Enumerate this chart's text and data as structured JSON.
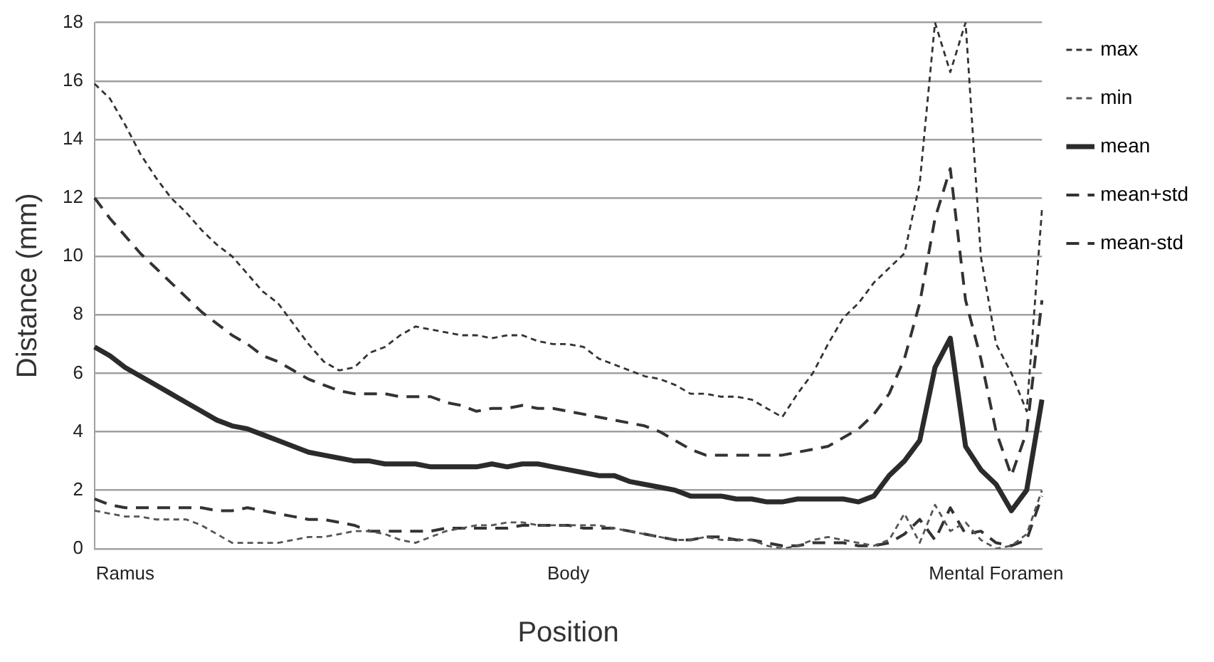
{
  "chart_data": {
    "type": "line",
    "xlabel": "Position",
    "ylabel": "Distance (mm)",
    "categories": [
      null,
      null,
      "Ramus",
      null,
      null,
      null,
      null,
      null,
      null,
      null,
      null,
      null,
      null,
      null,
      null,
      null,
      null,
      null,
      null,
      null,
      null,
      null,
      null,
      null,
      null,
      null,
      null,
      null,
      null,
      null,
      null,
      "Body",
      null,
      null,
      null,
      null,
      null,
      null,
      null,
      null,
      null,
      null,
      null,
      null,
      null,
      null,
      null,
      null,
      null,
      null,
      null,
      null,
      null,
      null,
      null,
      null,
      null,
      null,
      null,
      "Mental Foramen",
      null,
      null,
      null
    ],
    "series": [
      {
        "name": "max",
        "color": "#333333",
        "line_style": "dotted",
        "values": [
          15.9,
          15.4,
          14.5,
          13.5,
          12.7,
          12.0,
          11.5,
          10.9,
          10.4,
          10.0,
          9.4,
          8.8,
          8.4,
          7.7,
          7.0,
          6.4,
          6.1,
          6.2,
          6.7,
          6.9,
          7.3,
          7.6,
          7.5,
          7.4,
          7.3,
          7.3,
          7.2,
          7.3,
          7.3,
          7.1,
          7.0,
          7.0,
          6.9,
          6.5,
          6.3,
          6.1,
          5.9,
          5.8,
          5.6,
          5.3,
          5.3,
          5.2,
          5.2,
          5.1,
          4.8,
          4.5,
          5.3,
          6.0,
          7.0,
          7.9,
          8.4,
          9.1,
          9.6,
          10.1,
          12.5,
          18.0,
          16.3,
          18.0,
          10.0,
          7.0,
          6.0,
          4.7,
          11.6
        ]
      },
      {
        "name": "min",
        "color": "#555555",
        "line_style": "dotted",
        "values": [
          1.3,
          1.2,
          1.1,
          1.1,
          1.0,
          1.0,
          1.0,
          0.8,
          0.5,
          0.2,
          0.2,
          0.2,
          0.2,
          0.3,
          0.4,
          0.4,
          0.5,
          0.6,
          0.6,
          0.5,
          0.3,
          0.2,
          0.4,
          0.6,
          0.7,
          0.8,
          0.8,
          0.9,
          0.9,
          0.8,
          0.8,
          0.8,
          0.8,
          0.8,
          0.7,
          0.6,
          0.5,
          0.4,
          0.3,
          0.3,
          0.4,
          0.3,
          0.3,
          0.3,
          0.1,
          0.0,
          0.1,
          0.3,
          0.4,
          0.3,
          0.2,
          0.1,
          0.3,
          1.2,
          0.2,
          1.5,
          0.6,
          0.9,
          0.3,
          0.0,
          0.1,
          0.5,
          2.0
        ]
      },
      {
        "name": "mean",
        "color": "#2b2b2b",
        "line_style": "solid",
        "values": [
          6.9,
          6.6,
          6.2,
          5.9,
          5.6,
          5.3,
          5.0,
          4.7,
          4.4,
          4.2,
          4.1,
          3.9,
          3.7,
          3.5,
          3.3,
          3.2,
          3.1,
          3.0,
          3.0,
          2.9,
          2.9,
          2.9,
          2.8,
          2.8,
          2.8,
          2.8,
          2.9,
          2.8,
          2.9,
          2.9,
          2.8,
          2.7,
          2.6,
          2.5,
          2.5,
          2.3,
          2.2,
          2.1,
          2.0,
          1.8,
          1.8,
          1.8,
          1.7,
          1.7,
          1.6,
          1.6,
          1.7,
          1.7,
          1.7,
          1.7,
          1.6,
          1.8,
          2.5,
          3.0,
          3.7,
          6.2,
          7.2,
          3.5,
          2.7,
          2.2,
          1.3,
          2.0,
          5.1
        ]
      },
      {
        "name": "mean+std",
        "color": "#333333",
        "line_style": "dashed",
        "values": [
          12.0,
          11.3,
          10.7,
          10.1,
          9.6,
          9.1,
          8.6,
          8.1,
          7.7,
          7.3,
          7.0,
          6.6,
          6.4,
          6.1,
          5.8,
          5.6,
          5.4,
          5.3,
          5.3,
          5.3,
          5.2,
          5.2,
          5.2,
          5.0,
          4.9,
          4.7,
          4.8,
          4.8,
          4.9,
          4.8,
          4.8,
          4.7,
          4.6,
          4.5,
          4.4,
          4.3,
          4.2,
          4.0,
          3.7,
          3.4,
          3.2,
          3.2,
          3.2,
          3.2,
          3.2,
          3.2,
          3.3,
          3.4,
          3.5,
          3.8,
          4.1,
          4.6,
          5.3,
          6.5,
          8.4,
          11.3,
          13.0,
          8.5,
          6.5,
          4.0,
          2.5,
          4.0,
          8.5
        ]
      },
      {
        "name": "mean-std",
        "color": "#333333",
        "line_style": "dashed",
        "values": [
          1.7,
          1.5,
          1.4,
          1.4,
          1.4,
          1.4,
          1.4,
          1.4,
          1.3,
          1.3,
          1.4,
          1.3,
          1.2,
          1.1,
          1.0,
          1.0,
          0.9,
          0.8,
          0.6,
          0.6,
          0.6,
          0.6,
          0.6,
          0.7,
          0.7,
          0.7,
          0.7,
          0.7,
          0.8,
          0.8,
          0.8,
          0.8,
          0.7,
          0.7,
          0.7,
          0.6,
          0.5,
          0.4,
          0.3,
          0.3,
          0.4,
          0.4,
          0.3,
          0.3,
          0.2,
          0.1,
          0.1,
          0.2,
          0.2,
          0.2,
          0.1,
          0.1,
          0.2,
          0.5,
          1.0,
          0.3,
          1.4,
          0.5,
          0.6,
          0.2,
          0.1,
          0.3,
          1.8
        ]
      }
    ],
    "ylim": [
      0,
      18
    ],
    "yticks": [
      0,
      2,
      4,
      6,
      8,
      10,
      12,
      14,
      16,
      18
    ],
    "grid": "y",
    "legend": "right",
    "marker": "none"
  }
}
